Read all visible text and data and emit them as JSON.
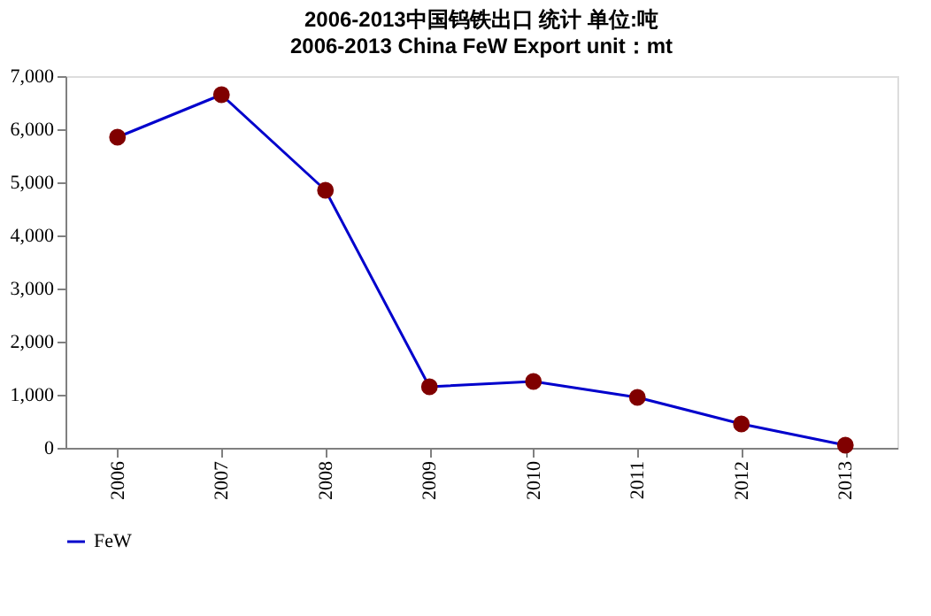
{
  "chart_data": {
    "type": "line",
    "title": "2006-2013中国钨铁出口 统计 单位:吨",
    "subtitle": "2006-2013 China FeW Export unit：mt",
    "categories": [
      "2006",
      "2007",
      "2008",
      "2009",
      "2010",
      "2011",
      "2012",
      "2013"
    ],
    "series": [
      {
        "name": "FeW",
        "color": "#0000cc",
        "colors": [
          "#800000",
          "#800000",
          "#800000",
          "#800000",
          "#800000",
          "#800000",
          "#800000",
          "#800000"
        ],
        "values": [
          5850,
          6650,
          4850,
          1150,
          1250,
          950,
          450,
          50
        ]
      }
    ],
    "ylim": [
      0,
      7000
    ],
    "yticks": [
      {
        "value": 0,
        "label": "0"
      },
      {
        "value": 1000,
        "label": "1,000"
      },
      {
        "value": 2000,
        "label": "2,000"
      },
      {
        "value": 3000,
        "label": "3,000"
      },
      {
        "value": 4000,
        "label": "4,000"
      },
      {
        "value": 5000,
        "label": "5,000"
      },
      {
        "value": 6000,
        "label": "6,000"
      },
      {
        "value": 7000,
        "label": "7,000"
      }
    ],
    "grid": false,
    "legend": "bottom",
    "marker": "circle",
    "line_style": "solid"
  }
}
